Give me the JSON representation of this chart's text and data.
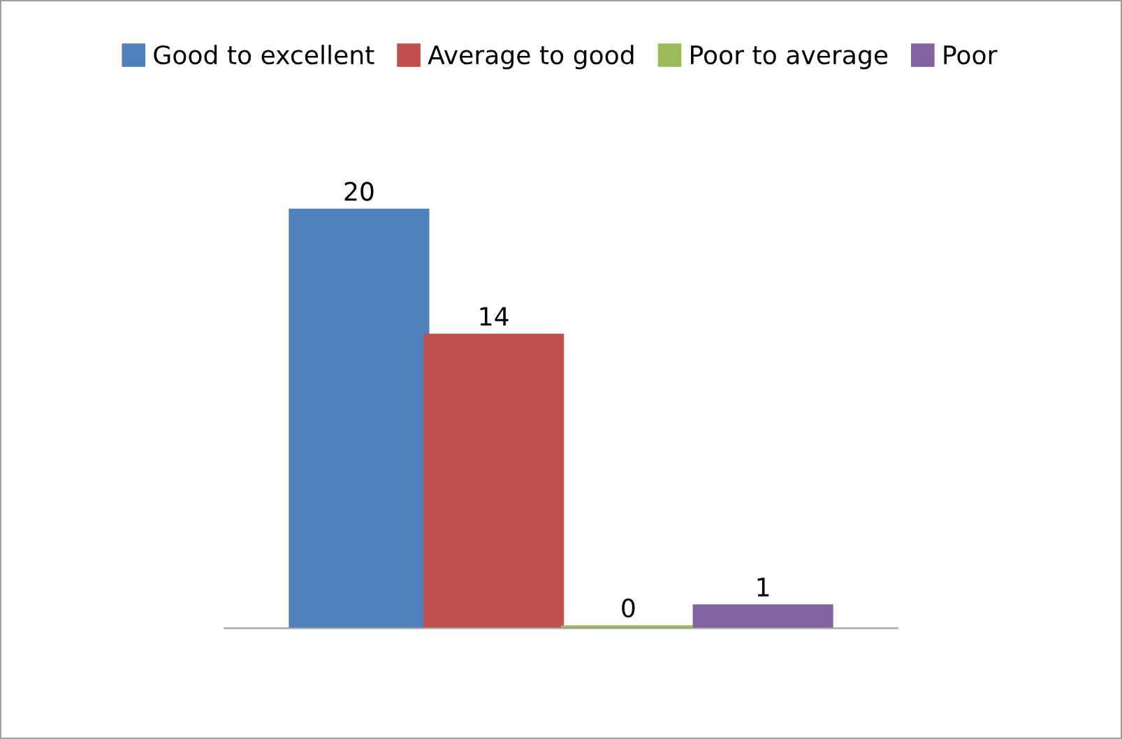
{
  "chart_data": {
    "type": "bar",
    "categories": [
      null
    ],
    "series": [
      {
        "name": "Good to excellent",
        "color": "#4f81bd",
        "values": [
          20
        ]
      },
      {
        "name": "Average to good",
        "color": "#c0504d",
        "values": [
          14
        ]
      },
      {
        "name": "Poor to average",
        "color": "#9bbb59",
        "values": [
          0
        ]
      },
      {
        "name": "Poor",
        "color": "#8064a2",
        "values": [
          1
        ]
      }
    ],
    "data_labels": true,
    "legend": "top",
    "grid": false
  }
}
